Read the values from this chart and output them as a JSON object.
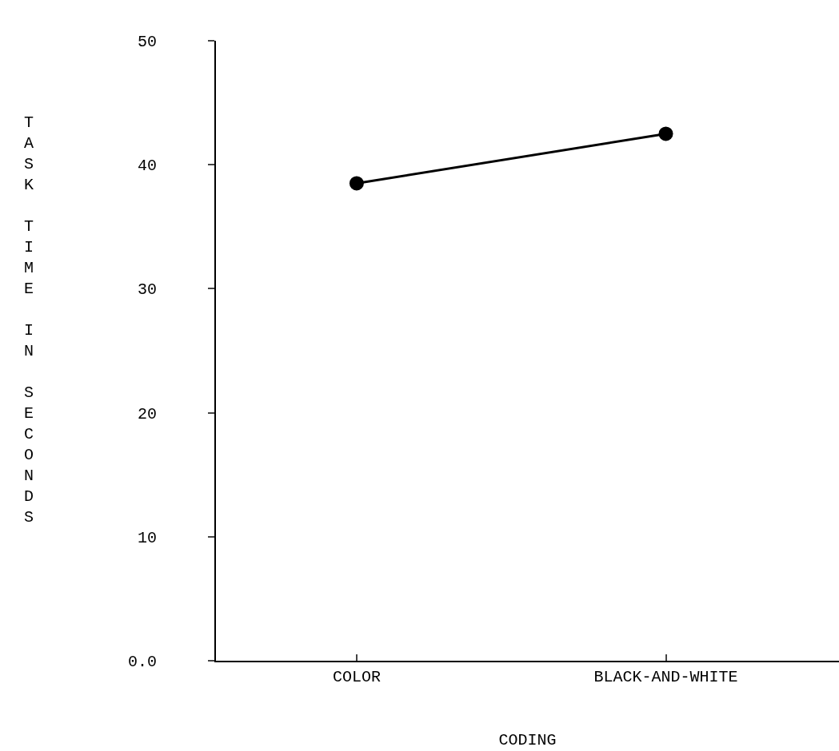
{
  "chart_data": {
    "type": "line",
    "xlabel": "CODING",
    "ylabel": "TASK TIME IN SECONDS",
    "categories": [
      "COLOR",
      "BLACK-AND-WHITE"
    ],
    "series": [
      {
        "color": "#000000",
        "values": [
          38.5,
          42.5
        ]
      }
    ],
    "ylim": [
      0,
      50
    ],
    "yticks": [
      {
        "value": 0,
        "label": "0.0"
      },
      10,
      20,
      30,
      40,
      50
    ],
    "grid": false,
    "marker": "circle",
    "line_style": "solid"
  }
}
